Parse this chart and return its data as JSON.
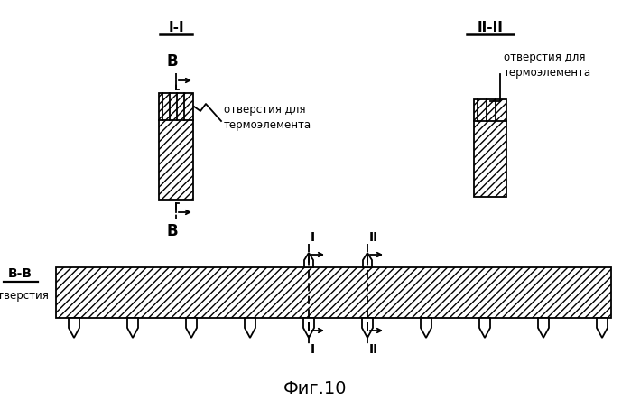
{
  "bg_color": "#ffffff",
  "line_color": "#000000",
  "fig_w": 6.99,
  "fig_h": 4.44,
  "dpi": 100,
  "title": "Фиг.10",
  "label_II_II": "II-II",
  "label_I_I": "I-I",
  "label_B": "B",
  "label_B_B": "B-B",
  "label_otv_termo": "отверстия для\nтермоэлемента",
  "label_otv": "отверстия",
  "label_I": "I",
  "label_II": "II"
}
